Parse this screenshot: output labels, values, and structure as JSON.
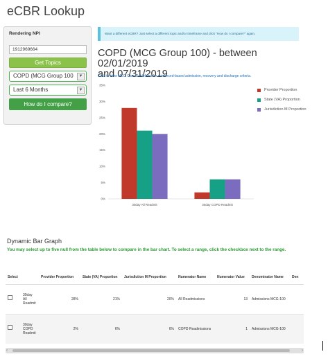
{
  "app": {
    "title": "eCBR Lookup"
  },
  "sidebar": {
    "npi_label": "Rendering NPI",
    "npi_value": "1912969664",
    "get_topics_label": "Get Topics",
    "topic_select": "COPD (MCG Group 100",
    "period_select": "Last 6 Months",
    "compare_label": "How do I compare?",
    "accent_color": "#8bc34a"
  },
  "banner": {
    "text": "Want a different eCBR? Just select a different topic and/or timeframe and click \"How do I compare?\" again."
  },
  "report": {
    "title_line1": "COPD (MCG Group 100) - between 02/01/2019",
    "title_line2": "and 07/31/2019",
    "guidelines_link": "Click to view MCG Care Guidelines for evidenced-based admission, recovery and discharge criteria."
  },
  "chart_data": {
    "type": "bar",
    "categories": [
      "30day All Readmit",
      "30day COPD Readmit"
    ],
    "series": [
      {
        "name": "Provider Proportion",
        "values": [
          28,
          2
        ],
        "color": "#c0392b"
      },
      {
        "name": "State (VA) Proportion",
        "values": [
          21,
          6
        ],
        "color": "#16a085"
      },
      {
        "name": "Jurisdiction M Proportion",
        "values": [
          20,
          6
        ],
        "color": "#7b6cc0"
      }
    ],
    "yticks": [
      "0%",
      "5%",
      "10%",
      "15%",
      "20%",
      "25%",
      "30%",
      "35%"
    ],
    "ylim": [
      0,
      35
    ],
    "legend_position": "right",
    "grid": false
  },
  "section": {
    "title": "Dynamic Bar Graph",
    "instruction": "You may select up to five null from the table below to compare in the bar chart. To select a range, click the checkbox next to the range."
  },
  "table": {
    "headers": [
      "Select",
      "",
      "Provider Proportion",
      "State (VA) Proportion",
      "Jurisdiction M Proportion",
      "Numerator Name",
      "Numerator Value",
      "Denominator Name",
      "Den"
    ],
    "rows": [
      {
        "measure": "30day All Readmit",
        "provider": "28%",
        "state": "21%",
        "jurisdiction": "20%",
        "numerator_name": "All Readmissions",
        "numerator_value": "13",
        "denominator_name": "Admissions MCG-100"
      },
      {
        "measure": "30day COPD Readmit",
        "provider": "2%",
        "state": "6%",
        "jurisdiction": "6%",
        "numerator_name": "COPD Readmissions",
        "numerator_value": "1",
        "denominator_name": "Admissions MCG-100"
      }
    ]
  }
}
